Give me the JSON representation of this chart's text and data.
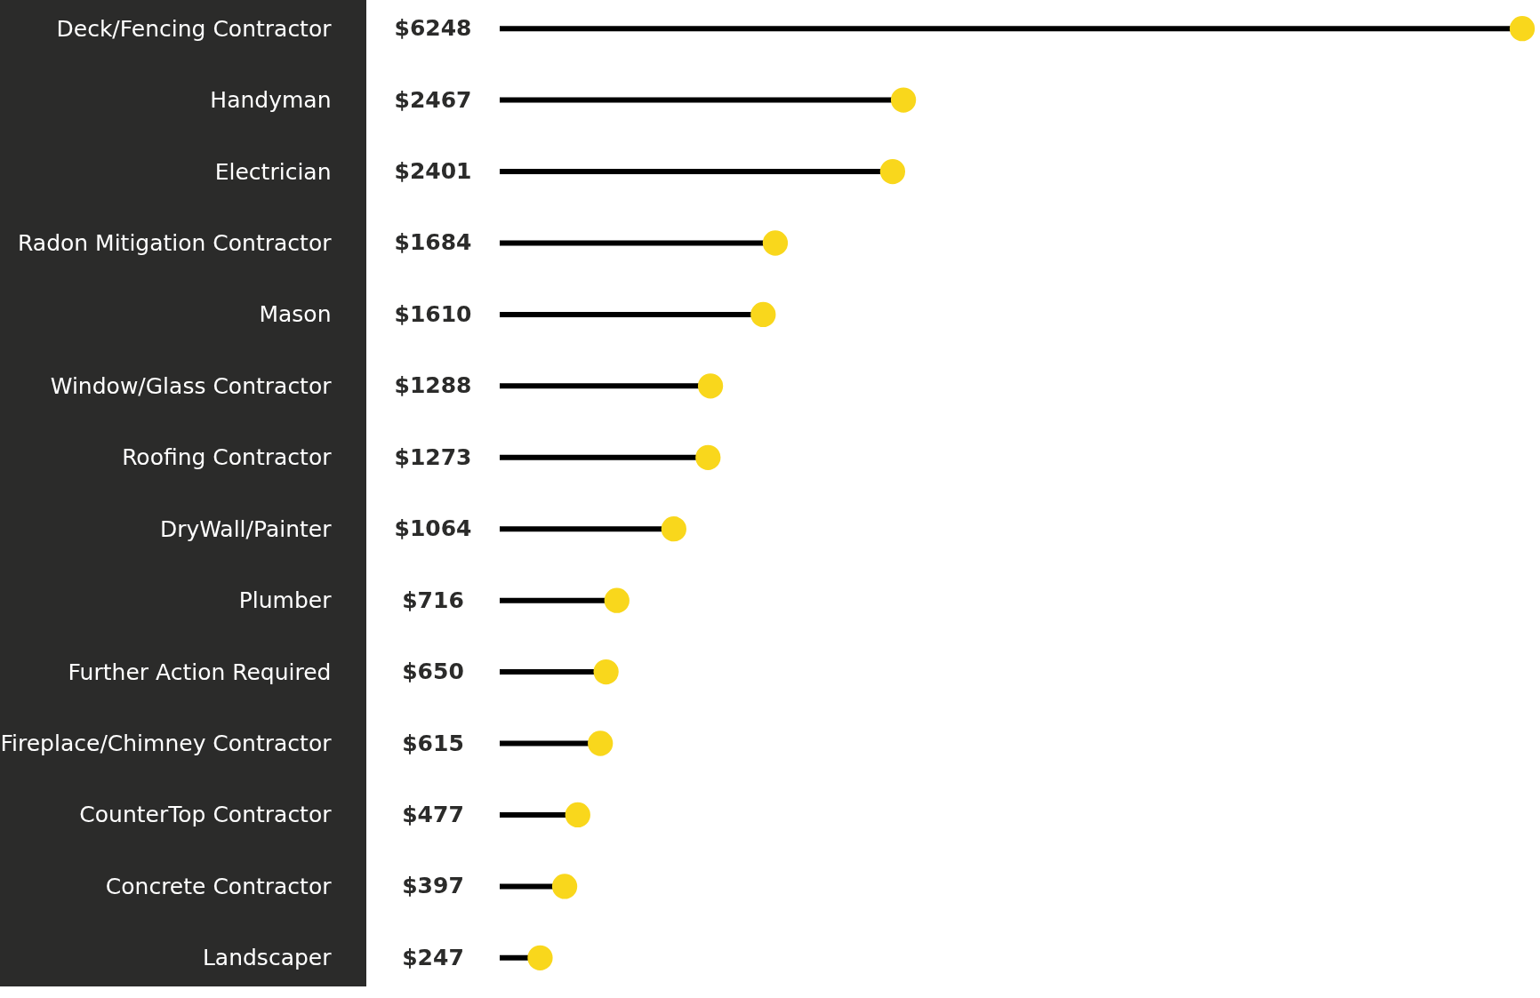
{
  "chart_data": {
    "type": "lollipop",
    "orientation": "horizontal",
    "categories": [
      "Deck/Fencing Contractor",
      "Handyman",
      "Electrician",
      "Radon Mitigation Contractor",
      "Mason",
      "Window/Glass Contractor",
      "Roofing Contractor",
      "DryWall/Painter",
      "Plumber",
      "Further Action Required",
      "Fireplace/Chimney Contractor",
      "CounterTop Contractor",
      "Concrete Contractor",
      "Landscaper"
    ],
    "values": [
      6248,
      2467,
      2401,
      1684,
      1610,
      1288,
      1273,
      1064,
      716,
      650,
      615,
      477,
      397,
      247
    ],
    "value_labels": [
      "$6248",
      "$2467",
      "$2401",
      "$1684",
      "$1610",
      "$1288",
      "$1273",
      "$1064",
      "$716",
      "$650",
      "$615",
      "$477",
      "$397",
      "$247"
    ],
    "color": "#f9d71c"
  }
}
